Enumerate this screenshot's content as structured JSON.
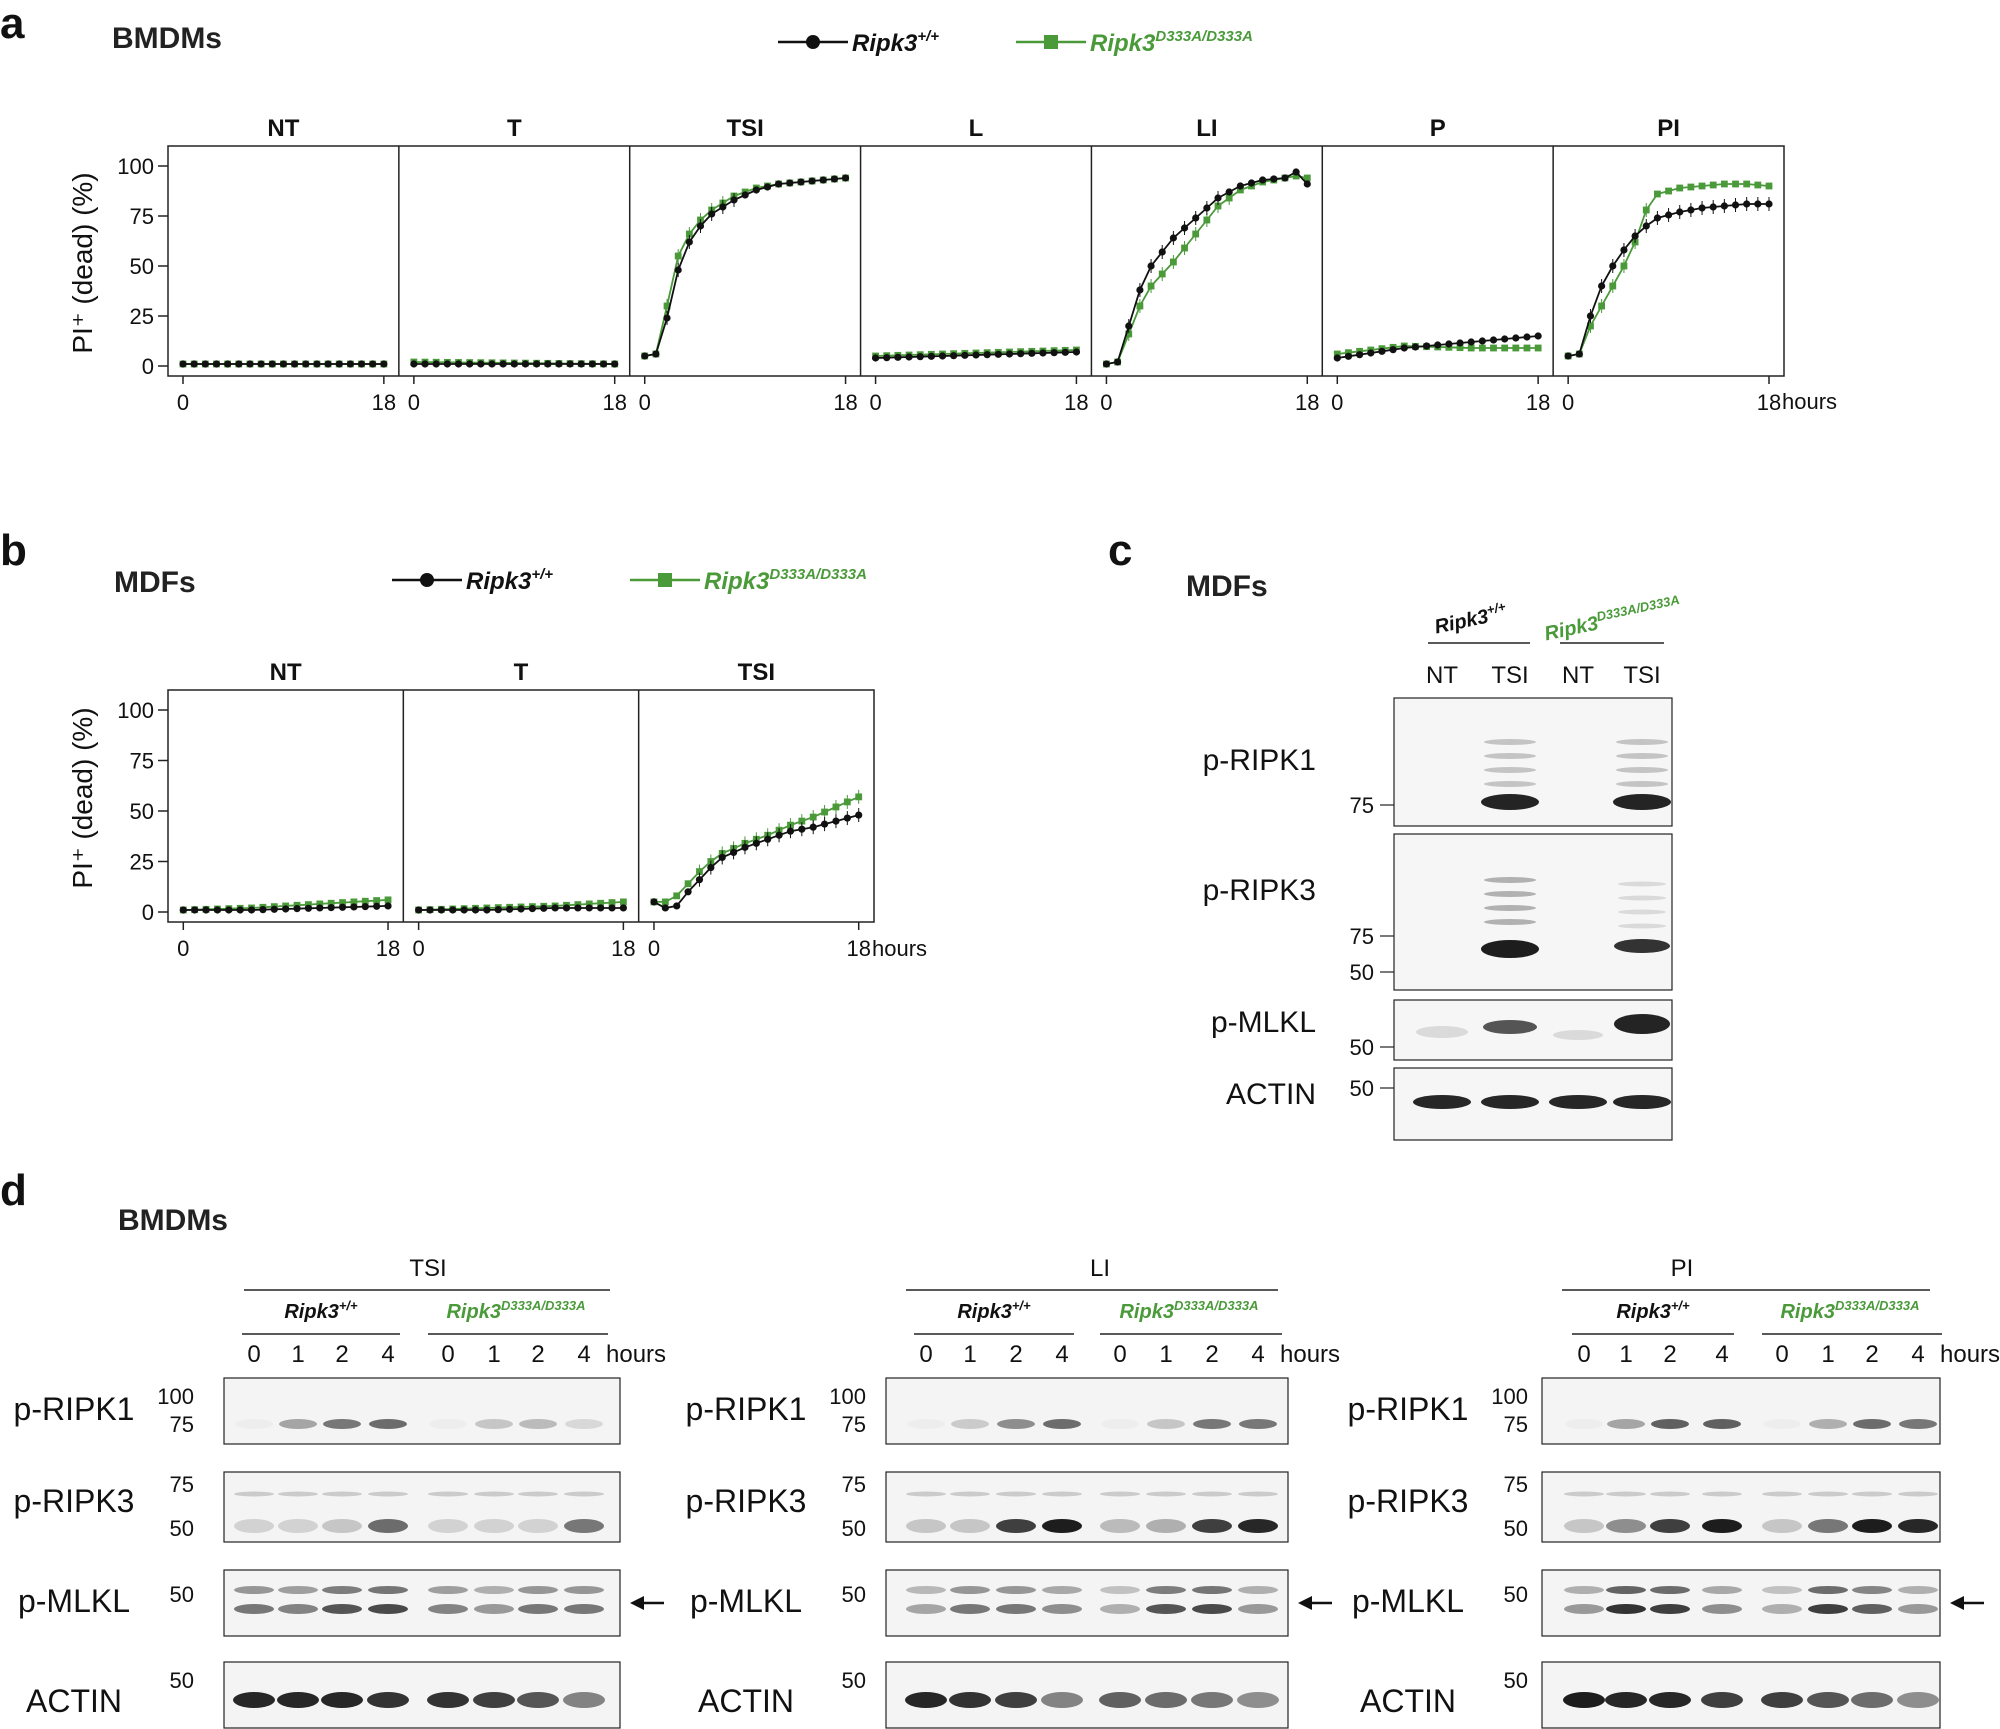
{
  "colors": {
    "wt": "#111111",
    "mut": "#4a9a3a"
  },
  "legend": {
    "wt": {
      "base": "Ripk3",
      "sup": "+/+"
    },
    "mut": {
      "base": "Ripk3",
      "sup": "D333A/D333A"
    }
  },
  "panel_a": {
    "label": "a",
    "cell": "BMDMs",
    "ylabel": "PI⁺ (dead) (%)",
    "hours": "hours"
  },
  "panel_b": {
    "label": "b",
    "cell": "MDFs",
    "ylabel": "PI⁺ (dead) (%)",
    "hours": "hours"
  },
  "panel_c": {
    "label": "c",
    "cell": "MDFs",
    "lanes": [
      "NT",
      "TSI",
      "NT",
      "TSI"
    ],
    "blots": [
      {
        "name": "p-RIPK1",
        "markers": [
          "75"
        ]
      },
      {
        "name": "p-RIPK3",
        "markers": [
          "75",
          "50"
        ]
      },
      {
        "name": "p-MLKL",
        "markers": [
          "50"
        ]
      },
      {
        "name": "ACTIN",
        "markers": [
          "50"
        ]
      }
    ]
  },
  "panel_d": {
    "label": "d",
    "cell": "BMDMs",
    "conditions": [
      "TSI",
      "LI",
      "PI"
    ],
    "lanes": [
      "0",
      "1",
      "2",
      "4",
      "0",
      "1",
      "2",
      "4"
    ],
    "hours": "hours",
    "blots": [
      {
        "name": "p-RIPK1",
        "markers": [
          "100",
          "75"
        ]
      },
      {
        "name": "p-RIPK3",
        "markers": [
          "75",
          "50"
        ]
      },
      {
        "name": "p-MLKL",
        "markers": [
          "50"
        ]
      },
      {
        "name": "ACTIN",
        "markers": [
          "50"
        ]
      }
    ]
  },
  "chart_data": [
    {
      "type": "line",
      "panel": "a",
      "ylim": [
        0,
        100
      ],
      "yticks": [
        0,
        25,
        50,
        75,
        100
      ],
      "xlim": [
        0,
        18
      ],
      "xlabel": "hours",
      "ylabel": "PI⁺ (dead) (%)",
      "subplots": [
        {
          "title": "NT",
          "x": [
            0,
            18
          ],
          "series": [
            {
              "name": "Ripk3+/+",
              "values": [
                1,
                1
              ]
            },
            {
              "name": "Ripk3D333A/D333A",
              "values": [
                1,
                1
              ]
            }
          ]
        },
        {
          "title": "T",
          "x": [
            0,
            18
          ],
          "series": [
            {
              "name": "Ripk3+/+",
              "values": [
                1,
                1
              ]
            },
            {
              "name": "Ripk3D333A/D333A",
              "values": [
                2,
                1
              ]
            }
          ]
        },
        {
          "title": "TSI",
          "x": [
            0,
            1,
            2,
            3,
            4,
            5,
            6,
            8,
            10,
            12,
            14,
            16,
            18
          ],
          "series": [
            {
              "name": "Ripk3+/+",
              "values": [
                5,
                6,
                24,
                48,
                62,
                70,
                76,
                83,
                88,
                91,
                92,
                93,
                94
              ]
            },
            {
              "name": "Ripk3D333A/D333A",
              "values": [
                5,
                6,
                30,
                55,
                66,
                73,
                78,
                85,
                89,
                91,
                92,
                93,
                94
              ]
            }
          ]
        },
        {
          "title": "L",
          "x": [
            0,
            18
          ],
          "series": [
            {
              "name": "Ripk3+/+",
              "values": [
                4,
                7
              ]
            },
            {
              "name": "Ripk3D333A/D333A",
              "values": [
                5,
                8
              ]
            }
          ]
        },
        {
          "title": "LI",
          "x": [
            0,
            1,
            2,
            3,
            4,
            5,
            6,
            8,
            10,
            12,
            14,
            16,
            17,
            18
          ],
          "series": [
            {
              "name": "Ripk3+/+",
              "values": [
                1,
                2,
                20,
                38,
                50,
                57,
                64,
                74,
                84,
                90,
                93,
                94,
                97,
                91
              ]
            },
            {
              "name": "Ripk3D333A/D333A",
              "values": [
                1,
                2,
                16,
                30,
                40,
                46,
                52,
                66,
                80,
                88,
                92,
                94,
                95,
                94
              ]
            }
          ]
        },
        {
          "title": "P",
          "x": [
            0,
            6,
            12,
            18
          ],
          "series": [
            {
              "name": "Ripk3+/+",
              "values": [
                4,
                9,
                12,
                15
              ]
            },
            {
              "name": "Ripk3D333A/D333A",
              "values": [
                6,
                10,
                9,
                9
              ]
            }
          ]
        },
        {
          "title": "PI",
          "x": [
            0,
            1,
            2,
            3,
            4,
            5,
            6,
            7,
            8,
            10,
            12,
            14,
            16,
            18
          ],
          "series": [
            {
              "name": "Ripk3+/+",
              "values": [
                5,
                6,
                25,
                40,
                50,
                58,
                65,
                70,
                74,
                77,
                79,
                80,
                81,
                81
              ]
            },
            {
              "name": "Ripk3D333A/D333A",
              "values": [
                5,
                6,
                20,
                30,
                40,
                50,
                62,
                78,
                86,
                89,
                90,
                91,
                91,
                90
              ]
            }
          ]
        }
      ]
    },
    {
      "type": "line",
      "panel": "b",
      "ylim": [
        0,
        100
      ],
      "yticks": [
        0,
        25,
        50,
        75,
        100
      ],
      "xlim": [
        0,
        18
      ],
      "xlabel": "hours",
      "ylabel": "PI⁺ (dead) (%)",
      "subplots": [
        {
          "title": "NT",
          "x": [
            0,
            6,
            12,
            18
          ],
          "series": [
            {
              "name": "Ripk3+/+",
              "values": [
                1,
                1,
                2,
                3
              ]
            },
            {
              "name": "Ripk3D333A/D333A",
              "values": [
                1,
                2,
                4,
                6
              ]
            }
          ]
        },
        {
          "title": "T",
          "x": [
            0,
            6,
            12,
            18
          ],
          "series": [
            {
              "name": "Ripk3+/+",
              "values": [
                1,
                1,
                2,
                2
              ]
            },
            {
              "name": "Ripk3D333A/D333A",
              "values": [
                1,
                2,
                3,
                5
              ]
            }
          ]
        },
        {
          "title": "TSI",
          "x": [
            0,
            1,
            2,
            3,
            4,
            5,
            6,
            8,
            10,
            12,
            14,
            16,
            18
          ],
          "series": [
            {
              "name": "Ripk3+/+",
              "values": [
                5,
                2,
                3,
                10,
                16,
                22,
                27,
                32,
                36,
                40,
                42,
                45,
                48
              ]
            },
            {
              "name": "Ripk3D333A/D333A",
              "values": [
                5,
                5,
                8,
                14,
                20,
                25,
                29,
                34,
                38,
                43,
                47,
                52,
                57
              ]
            }
          ]
        }
      ]
    }
  ]
}
